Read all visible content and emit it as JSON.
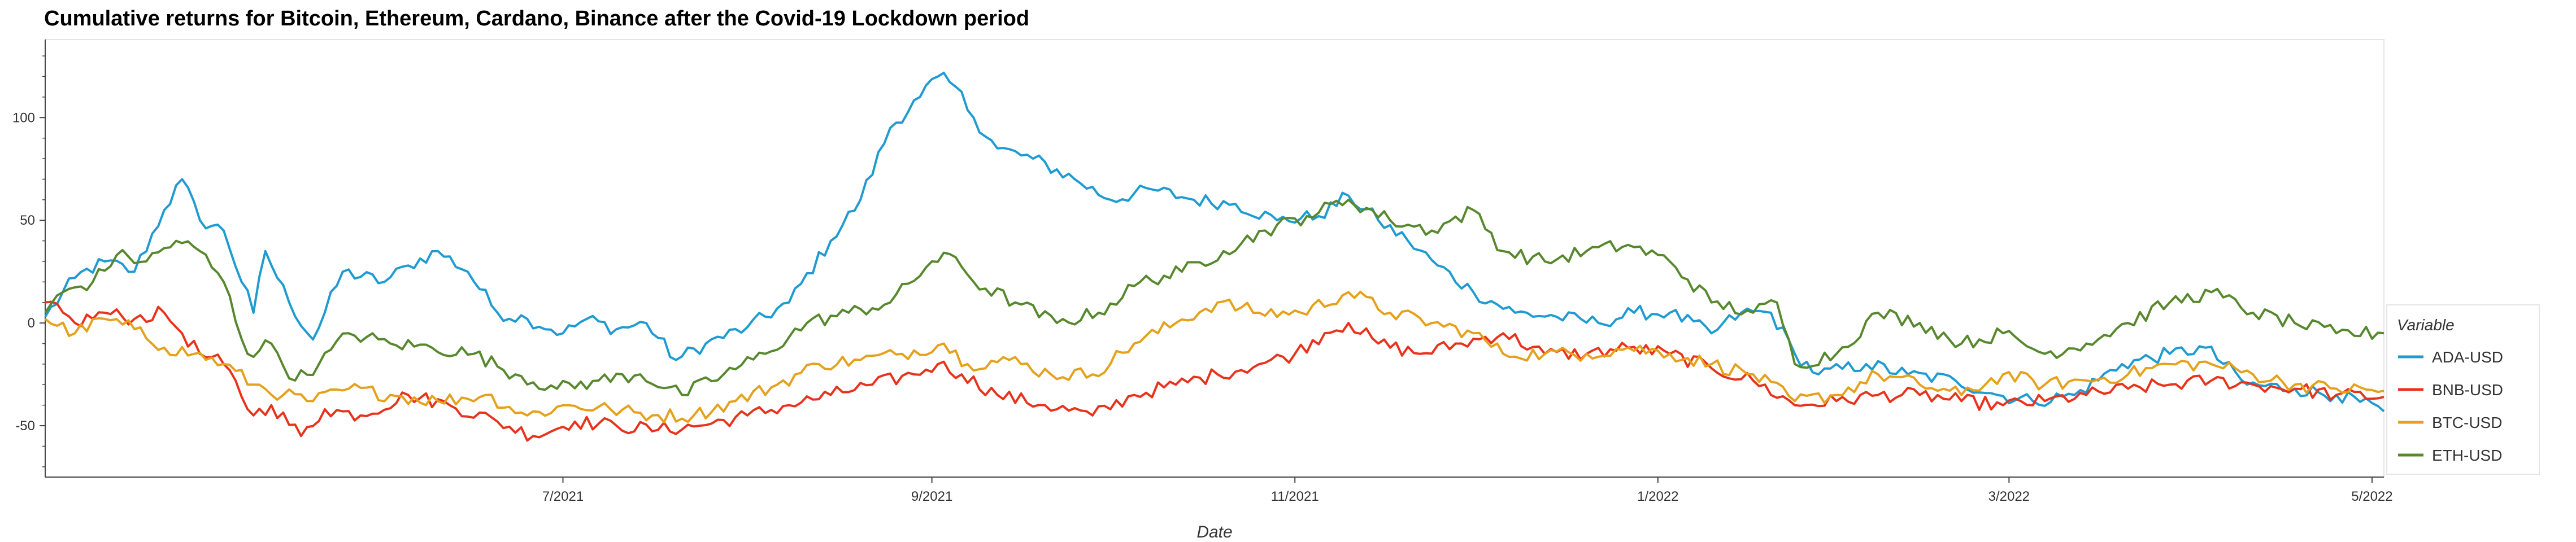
{
  "chart_data": {
    "type": "line",
    "title": "Cumulative returns for Bitcoin, Ethereum, Cardano, Binance after the Covid-19 Lockdown period",
    "xlabel": "Date",
    "ylabel": "",
    "x_start": "2021-04-05",
    "x_end": "2022-05-03",
    "ylim": [
      -75,
      138
    ],
    "y_ticks": [
      -50,
      0,
      50,
      100
    ],
    "x_ticks": [
      {
        "date": "2021-07-01",
        "label": "7/2021"
      },
      {
        "date": "2021-09-01",
        "label": "9/2021"
      },
      {
        "date": "2021-11-01",
        "label": "11/2021"
      },
      {
        "date": "2022-01-01",
        "label": "1/2022"
      },
      {
        "date": "2022-03-01",
        "label": "3/2022"
      },
      {
        "date": "2022-05-01",
        "label": "5/2022"
      }
    ],
    "grid": false,
    "legend": {
      "title": "Variable",
      "position": "right-bottom"
    },
    "series": [
      {
        "name": "ADA-USD",
        "color": "#1f9bd1",
        "points": [
          [
            "2021-04-05",
            3
          ],
          [
            "2021-04-10",
            22
          ],
          [
            "2021-04-15",
            30
          ],
          [
            "2021-04-20",
            25
          ],
          [
            "2021-04-25",
            55
          ],
          [
            "2021-04-28",
            70
          ],
          [
            "2021-05-01",
            50
          ],
          [
            "2021-05-05",
            45
          ],
          [
            "2021-05-10",
            5
          ],
          [
            "2021-05-12",
            35
          ],
          [
            "2021-05-16",
            10
          ],
          [
            "2021-05-20",
            -8
          ],
          [
            "2021-05-25",
            25
          ],
          [
            "2021-06-01",
            20
          ],
          [
            "2021-06-05",
            28
          ],
          [
            "2021-06-10",
            35
          ],
          [
            "2021-06-15",
            25
          ],
          [
            "2021-06-20",
            5
          ],
          [
            "2021-06-25",
            2
          ],
          [
            "2021-07-01",
            -5
          ],
          [
            "2021-07-05",
            2
          ],
          [
            "2021-07-10",
            -3
          ],
          [
            "2021-07-15",
            0
          ],
          [
            "2021-07-20",
            -18
          ],
          [
            "2021-07-25",
            -10
          ],
          [
            "2021-08-01",
            -2
          ],
          [
            "2021-08-08",
            10
          ],
          [
            "2021-08-15",
            40
          ],
          [
            "2021-08-20",
            60
          ],
          [
            "2021-08-25",
            95
          ],
          [
            "2021-08-30",
            110
          ],
          [
            "2021-09-02",
            120
          ],
          [
            "2021-09-05",
            115
          ],
          [
            "2021-09-08",
            100
          ],
          [
            "2021-09-12",
            85
          ],
          [
            "2021-09-18",
            80
          ],
          [
            "2021-09-25",
            70
          ],
          [
            "2021-10-01",
            60
          ],
          [
            "2021-10-08",
            65
          ],
          [
            "2021-10-15",
            60
          ],
          [
            "2021-10-22",
            58
          ],
          [
            "2021-10-29",
            50
          ],
          [
            "2021-11-05",
            52
          ],
          [
            "2021-11-10",
            62
          ],
          [
            "2021-11-15",
            50
          ],
          [
            "2021-11-20",
            40
          ],
          [
            "2021-11-25",
            28
          ],
          [
            "2021-12-01",
            15
          ],
          [
            "2021-12-08",
            5
          ],
          [
            "2021-12-15",
            3
          ],
          [
            "2021-12-22",
            0
          ],
          [
            "2021-12-28",
            5
          ],
          [
            "2022-01-03",
            5
          ],
          [
            "2022-01-10",
            -5
          ],
          [
            "2022-01-15",
            5
          ],
          [
            "2022-01-20",
            5
          ],
          [
            "2022-01-24",
            -15
          ],
          [
            "2022-01-28",
            -25
          ],
          [
            "2022-02-05",
            -20
          ],
          [
            "2022-02-12",
            -25
          ],
          [
            "2022-02-20",
            -28
          ],
          [
            "2022-02-27",
            -35
          ],
          [
            "2022-03-05",
            -38
          ],
          [
            "2022-03-12",
            -35
          ],
          [
            "2022-03-20",
            -20
          ],
          [
            "2022-03-28",
            -15
          ],
          [
            "2022-04-03",
            -12
          ],
          [
            "2022-04-10",
            -30
          ],
          [
            "2022-04-18",
            -32
          ],
          [
            "2022-04-25",
            -35
          ],
          [
            "2022-05-03",
            -43
          ]
        ]
      },
      {
        "name": "BNB-USD",
        "color": "#e8331c",
        "points": [
          [
            "2021-04-05",
            10
          ],
          [
            "2021-04-10",
            0
          ],
          [
            "2021-04-15",
            5
          ],
          [
            "2021-04-20",
            2
          ],
          [
            "2021-04-25",
            5
          ],
          [
            "2021-04-28",
            -5
          ],
          [
            "2021-05-01",
            -15
          ],
          [
            "2021-05-05",
            -20
          ],
          [
            "2021-05-10",
            -45
          ],
          [
            "2021-05-13",
            -40
          ],
          [
            "2021-05-18",
            -55
          ],
          [
            "2021-05-22",
            -42
          ],
          [
            "2021-05-28",
            -45
          ],
          [
            "2021-06-05",
            -35
          ],
          [
            "2021-06-12",
            -40
          ],
          [
            "2021-06-20",
            -48
          ],
          [
            "2021-06-26",
            -55
          ],
          [
            "2021-07-03",
            -48
          ],
          [
            "2021-07-10",
            -50
          ],
          [
            "2021-07-17",
            -52
          ],
          [
            "2021-07-24",
            -50
          ],
          [
            "2021-08-01",
            -45
          ],
          [
            "2021-08-08",
            -40
          ],
          [
            "2021-08-15",
            -35
          ],
          [
            "2021-08-22",
            -30
          ],
          [
            "2021-08-29",
            -25
          ],
          [
            "2021-09-02",
            -20
          ],
          [
            "2021-09-06",
            -25
          ],
          [
            "2021-09-12",
            -35
          ],
          [
            "2021-09-20",
            -40
          ],
          [
            "2021-09-28",
            -45
          ],
          [
            "2021-10-05",
            -35
          ],
          [
            "2021-10-12",
            -30
          ],
          [
            "2021-10-19",
            -25
          ],
          [
            "2021-10-26",
            -20
          ],
          [
            "2021-11-01",
            -15
          ],
          [
            "2021-11-06",
            -5
          ],
          [
            "2021-11-10",
            0
          ],
          [
            "2021-11-15",
            -10
          ],
          [
            "2021-11-22",
            -15
          ],
          [
            "2021-11-29",
            -10
          ],
          [
            "2021-12-06",
            -5
          ],
          [
            "2021-12-13",
            -15
          ],
          [
            "2021-12-20",
            -15
          ],
          [
            "2021-12-27",
            -12
          ],
          [
            "2022-01-03",
            -15
          ],
          [
            "2022-01-10",
            -22
          ],
          [
            "2022-01-17",
            -28
          ],
          [
            "2022-01-24",
            -40
          ],
          [
            "2022-01-31",
            -38
          ],
          [
            "2022-02-07",
            -35
          ],
          [
            "2022-02-14",
            -35
          ],
          [
            "2022-02-21",
            -38
          ],
          [
            "2022-02-28",
            -40
          ],
          [
            "2022-03-07",
            -38
          ],
          [
            "2022-03-14",
            -35
          ],
          [
            "2022-03-21",
            -32
          ],
          [
            "2022-03-28",
            -30
          ],
          [
            "2022-04-04",
            -28
          ],
          [
            "2022-04-11",
            -30
          ],
          [
            "2022-04-18",
            -32
          ],
          [
            "2022-04-25",
            -35
          ],
          [
            "2022-05-03",
            -36
          ]
        ]
      },
      {
        "name": "BTC-USD",
        "color": "#e5a11c",
        "points": [
          [
            "2021-04-05",
            2
          ],
          [
            "2021-04-10",
            -5
          ],
          [
            "2021-04-15",
            2
          ],
          [
            "2021-04-20",
            -3
          ],
          [
            "2021-04-25",
            -12
          ],
          [
            "2021-04-30",
            -15
          ],
          [
            "2021-05-05",
            -20
          ],
          [
            "2021-05-10",
            -30
          ],
          [
            "2021-05-15",
            -35
          ],
          [
            "2021-05-20",
            -38
          ],
          [
            "2021-05-26",
            -32
          ],
          [
            "2021-06-02",
            -35
          ],
          [
            "2021-06-10",
            -38
          ],
          [
            "2021-06-18",
            -35
          ],
          [
            "2021-06-25",
            -45
          ],
          [
            "2021-07-02",
            -40
          ],
          [
            "2021-07-09",
            -42
          ],
          [
            "2021-07-16",
            -45
          ],
          [
            "2021-07-23",
            -45
          ],
          [
            "2021-07-30",
            -38
          ],
          [
            "2021-08-06",
            -30
          ],
          [
            "2021-08-13",
            -20
          ],
          [
            "2021-08-20",
            -18
          ],
          [
            "2021-08-27",
            -15
          ],
          [
            "2021-09-03",
            -10
          ],
          [
            "2021-09-07",
            -20
          ],
          [
            "2021-09-14",
            -18
          ],
          [
            "2021-09-21",
            -25
          ],
          [
            "2021-09-28",
            -25
          ],
          [
            "2021-10-05",
            -10
          ],
          [
            "2021-10-12",
            0
          ],
          [
            "2021-10-19",
            10
          ],
          [
            "2021-10-26",
            5
          ],
          [
            "2021-11-02",
            5
          ],
          [
            "2021-11-10",
            15
          ],
          [
            "2021-11-17",
            5
          ],
          [
            "2021-11-24",
            0
          ],
          [
            "2021-12-01",
            -5
          ],
          [
            "2021-12-06",
            -15
          ],
          [
            "2021-12-13",
            -15
          ],
          [
            "2021-12-20",
            -15
          ],
          [
            "2021-12-27",
            -12
          ],
          [
            "2022-01-03",
            -15
          ],
          [
            "2022-01-10",
            -20
          ],
          [
            "2022-01-17",
            -25
          ],
          [
            "2022-01-24",
            -38
          ],
          [
            "2022-01-31",
            -35
          ],
          [
            "2022-02-07",
            -25
          ],
          [
            "2022-02-14",
            -30
          ],
          [
            "2022-02-21",
            -35
          ],
          [
            "2022-02-28",
            -25
          ],
          [
            "2022-03-07",
            -30
          ],
          [
            "2022-03-14",
            -28
          ],
          [
            "2022-03-21",
            -25
          ],
          [
            "2022-03-28",
            -20
          ],
          [
            "2022-04-04",
            -20
          ],
          [
            "2022-04-11",
            -25
          ],
          [
            "2022-04-18",
            -30
          ],
          [
            "2022-04-25",
            -32
          ],
          [
            "2022-05-03",
            -33
          ]
        ]
      },
      {
        "name": "ETH-USD",
        "color": "#58882e",
        "points": [
          [
            "2021-04-05",
            5
          ],
          [
            "2021-04-08",
            15
          ],
          [
            "2021-04-13",
            20
          ],
          [
            "2021-04-17",
            33
          ],
          [
            "2021-04-22",
            30
          ],
          [
            "2021-04-27",
            40
          ],
          [
            "2021-05-01",
            35
          ],
          [
            "2021-05-05",
            20
          ],
          [
            "2021-05-09",
            -15
          ],
          [
            "2021-05-13",
            -10
          ],
          [
            "2021-05-17",
            -28
          ],
          [
            "2021-05-21",
            -20
          ],
          [
            "2021-05-26",
            -5
          ],
          [
            "2021-06-02",
            -10
          ],
          [
            "2021-06-09",
            -12
          ],
          [
            "2021-06-16",
            -15
          ],
          [
            "2021-06-23",
            -25
          ],
          [
            "2021-06-30",
            -32
          ],
          [
            "2021-07-07",
            -28
          ],
          [
            "2021-07-14",
            -25
          ],
          [
            "2021-07-21",
            -35
          ],
          [
            "2021-07-28",
            -25
          ],
          [
            "2021-08-04",
            -15
          ],
          [
            "2021-08-11",
            0
          ],
          [
            "2021-08-18",
            5
          ],
          [
            "2021-08-25",
            10
          ],
          [
            "2021-09-01",
            30
          ],
          [
            "2021-09-05",
            32
          ],
          [
            "2021-09-08",
            20
          ],
          [
            "2021-09-15",
            10
          ],
          [
            "2021-09-22",
            0
          ],
          [
            "2021-09-29",
            5
          ],
          [
            "2021-10-06",
            20
          ],
          [
            "2021-10-13",
            25
          ],
          [
            "2021-10-20",
            35
          ],
          [
            "2021-10-27",
            45
          ],
          [
            "2021-11-03",
            52
          ],
          [
            "2021-11-10",
            60
          ],
          [
            "2021-11-17",
            50
          ],
          [
            "2021-11-24",
            45
          ],
          [
            "2021-12-01",
            55
          ],
          [
            "2021-12-06",
            35
          ],
          [
            "2021-12-13",
            30
          ],
          [
            "2021-12-20",
            35
          ],
          [
            "2021-12-27",
            38
          ],
          [
            "2022-01-03",
            30
          ],
          [
            "2022-01-10",
            10
          ],
          [
            "2022-01-17",
            5
          ],
          [
            "2022-01-21",
            10
          ],
          [
            "2022-01-24",
            -20
          ],
          [
            "2022-01-31",
            -15
          ],
          [
            "2022-02-07",
            5
          ],
          [
            "2022-02-14",
            0
          ],
          [
            "2022-02-21",
            -10
          ],
          [
            "2022-02-28",
            -5
          ],
          [
            "2022-03-07",
            -15
          ],
          [
            "2022-03-14",
            -10
          ],
          [
            "2022-03-21",
            0
          ],
          [
            "2022-03-28",
            10
          ],
          [
            "2022-04-04",
            15
          ],
          [
            "2022-04-11",
            5
          ],
          [
            "2022-04-18",
            0
          ],
          [
            "2022-04-25",
            -5
          ],
          [
            "2022-05-03",
            -5
          ]
        ]
      }
    ]
  }
}
